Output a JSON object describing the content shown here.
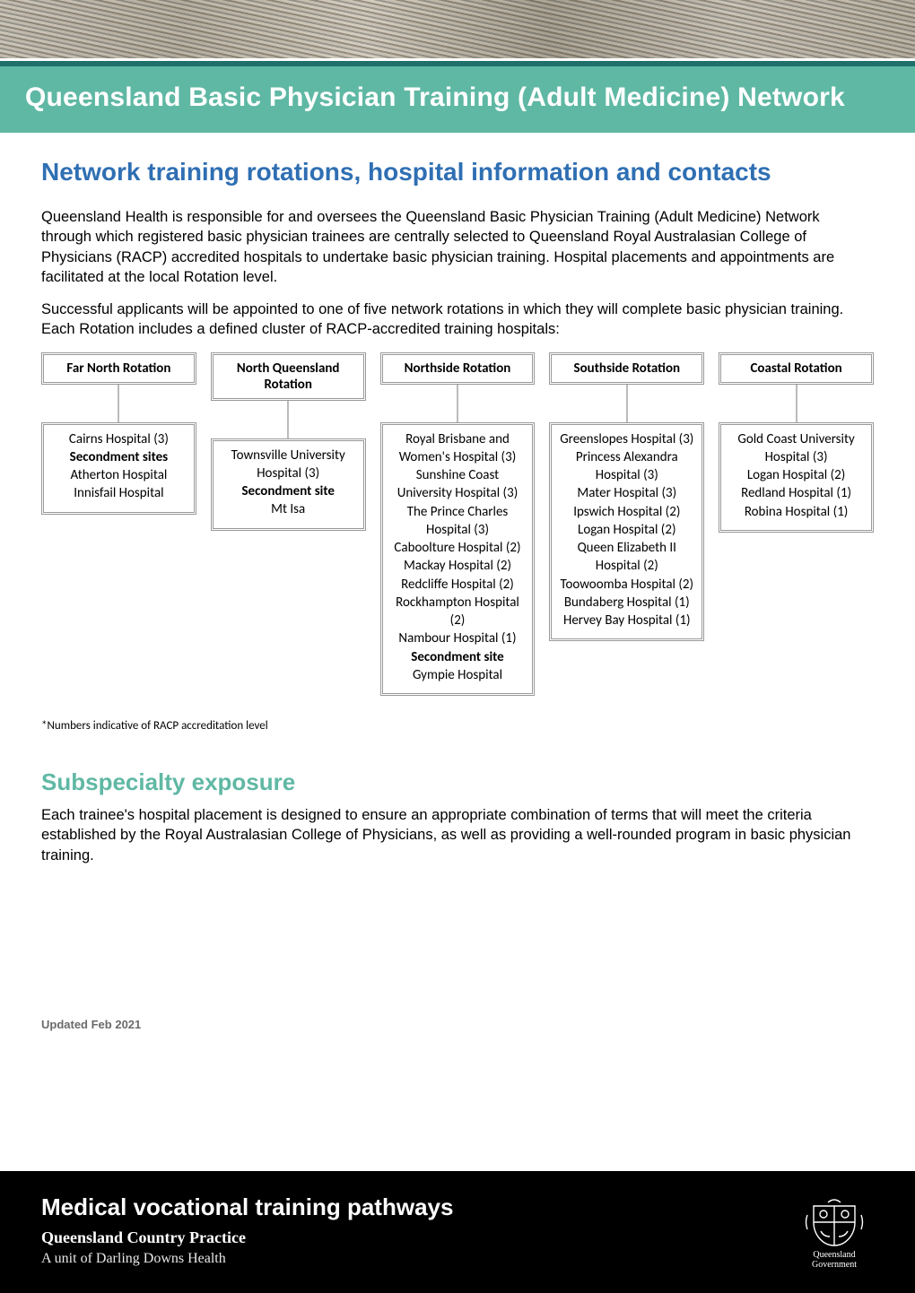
{
  "colors": {
    "teal_accent": "#5fb8a4",
    "teal_dark": "#1f6f6b",
    "heading_blue": "#2f6fb3",
    "text": "#000000",
    "muted": "#6a6a6a",
    "box_border": "#999999",
    "footer_bg": "#000000",
    "footer_text": "#ffffff"
  },
  "header": {
    "title": "Queensland Basic Physician Training (Adult Medicine) Network"
  },
  "subtitle": "Network training rotations, hospital information and contacts",
  "intro_paragraphs": [
    "Queensland Health is responsible for and oversees the Queensland Basic Physician Training (Adult Medicine) Network through which registered basic physician trainees are centrally selected to Queensland Royal Australasian College of Physicians (RACP) accredited hospitals to undertake basic physician training. Hospital placements and appointments are facilitated at the local Rotation level.",
    "Successful applicants will be appointed to one of five network rotations in which they will complete basic physician training. Each Rotation includes a defined cluster of RACP-accredited training hospitals:"
  ],
  "rotations": [
    {
      "name": "Far North Rotation",
      "lines": [
        {
          "text": "Cairns Hospital (3)",
          "bold": false
        },
        {
          "text": "Secondment sites",
          "bold": true
        },
        {
          "text": "Atherton Hospital",
          "bold": false
        },
        {
          "text": "Innisfail Hospital",
          "bold": false
        }
      ]
    },
    {
      "name": "North Queensland Rotation",
      "lines": [
        {
          "text": "Townsville University Hospital (3)",
          "bold": false
        },
        {
          "text": "Secondment site",
          "bold": true
        },
        {
          "text": "Mt Isa",
          "bold": false
        }
      ]
    },
    {
      "name": "Northside Rotation",
      "lines": [
        {
          "text": "Royal Brisbane and Women's Hospital (3)",
          "bold": false
        },
        {
          "text": "Sunshine Coast University Hospital (3)",
          "bold": false
        },
        {
          "text": "The Prince Charles Hospital (3)",
          "bold": false
        },
        {
          "text": "Caboolture Hospital (2)",
          "bold": false
        },
        {
          "text": "Mackay Hospital (2)",
          "bold": false
        },
        {
          "text": "Redcliffe Hospital (2)",
          "bold": false
        },
        {
          "text": "Rockhampton Hospital (2)",
          "bold": false
        },
        {
          "text": "Nambour Hospital (1)",
          "bold": false
        },
        {
          "text": "Secondment site",
          "bold": true
        },
        {
          "text": "Gympie Hospital",
          "bold": false
        }
      ]
    },
    {
      "name": "Southside Rotation",
      "lines": [
        {
          "text": "Greenslopes Hospital (3)",
          "bold": false
        },
        {
          "text": "Princess Alexandra Hospital (3)",
          "bold": false
        },
        {
          "text": "Mater Hospital (3)",
          "bold": false
        },
        {
          "text": "Ipswich Hospital (2)",
          "bold": false
        },
        {
          "text": "Logan Hospital (2)",
          "bold": false
        },
        {
          "text": "Queen Elizabeth II Hospital (2)",
          "bold": false
        },
        {
          "text": "Toowoomba Hospital (2)",
          "bold": false
        },
        {
          "text": "Bundaberg Hospital (1)",
          "bold": false
        },
        {
          "text": "Hervey Bay Hospital (1)",
          "bold": false
        }
      ]
    },
    {
      "name": "Coastal Rotation",
      "lines": [
        {
          "text": "Gold Coast University Hospital (3)",
          "bold": false
        },
        {
          "text": "Logan Hospital (2)",
          "bold": false
        },
        {
          "text": "Redland Hospital (1)",
          "bold": false
        },
        {
          "text": "Robina Hospital (1)",
          "bold": false
        }
      ]
    }
  ],
  "footnote": "*Numbers indicative of RACP accreditation level",
  "subspecialty": {
    "heading": "Subspecialty exposure",
    "text": "Each trainee's hospital placement is designed to ensure an appropriate combination of terms that will meet the criteria established by the Royal Australasian College of Physicians, as well as providing a well-rounded program in basic physician training."
  },
  "updated": "Updated Feb 2021",
  "footer": {
    "title": "Medical vocational training pathways",
    "sub1": "Queensland Country Practice",
    "sub2": "A unit of Darling Downs Health",
    "crest_line1": "Queensland",
    "crest_line2": "Government"
  }
}
